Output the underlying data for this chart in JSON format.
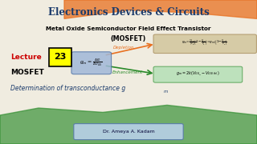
{
  "title": "Electronics Devices & Circuits",
  "subtitle": "Metal Oxide Semiconductor Field Effect Transistor",
  "subtitle2": "(MOSFET)",
  "lecture_label": "Lecture",
  "lecture_num": "23",
  "line1": "MOSFET",
  "line2": "Determination of transconductance g",
  "line2_sub": "m",
  "label_dep": "Depletion",
  "label_enh": "Enhancement",
  "author": "Dr. Ameya A. Kadam",
  "bg_color": "#f0ece0",
  "title_color": "#1a3a6b",
  "subtitle_color": "#000000",
  "lecture_color": "#cc0000",
  "lecture_num_color": "#000000",
  "lecture_num_bg": "#ffff00",
  "line2_color": "#1a3a6b",
  "dep_arrow_color": "#e87020",
  "enh_arrow_color": "#2a8a2a",
  "formula_box_dep_color": "#d4c8a0",
  "formula_box_enh_color": "#b8e0b8",
  "formula_center_box_color": "#a0b8d8",
  "author_box_color": "#b8d0e8",
  "orange_wave": "#e87020",
  "green_wave": "#2a8a2a"
}
